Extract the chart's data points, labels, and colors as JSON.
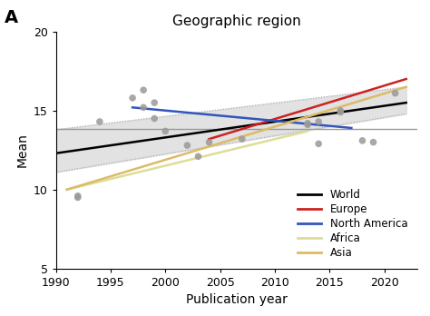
{
  "title": "Geographic region",
  "panel_label": "A",
  "xlabel": "Publication year",
  "ylabel": "Mean",
  "xlim": [
    1990,
    2023
  ],
  "ylim": [
    5,
    20
  ],
  "xticks": [
    1990,
    1995,
    2000,
    2005,
    2010,
    2015,
    2020
  ],
  "yticks": [
    5,
    10,
    15,
    20
  ],
  "scatter_points": [
    [
      1992,
      9.5
    ],
    [
      1992,
      9.6
    ],
    [
      1994,
      14.3
    ],
    [
      1997,
      15.8
    ],
    [
      1998,
      16.3
    ],
    [
      1998,
      15.2
    ],
    [
      1999,
      15.5
    ],
    [
      1999,
      14.5
    ],
    [
      2000,
      13.7
    ],
    [
      2002,
      12.8
    ],
    [
      2003,
      12.1
    ],
    [
      2004,
      13.0
    ],
    [
      2007,
      13.2
    ],
    [
      2013,
      14.1
    ],
    [
      2013,
      14.2
    ],
    [
      2014,
      14.3
    ],
    [
      2014,
      12.9
    ],
    [
      2016,
      15.0
    ],
    [
      2016,
      14.9
    ],
    [
      2018,
      13.1
    ],
    [
      2019,
      13.0
    ],
    [
      2021,
      16.1
    ]
  ],
  "scatter_color": "#999999",
  "scatter_size": 30,
  "world_line": {
    "x": [
      1990,
      2022
    ],
    "y": [
      12.3,
      15.5
    ],
    "color": "#000000",
    "lw": 1.8
  },
  "world_ci_upper": {
    "x": [
      1990,
      2022
    ],
    "y": [
      13.8,
      16.5
    ]
  },
  "world_ci_lower": {
    "x": [
      1990,
      2022
    ],
    "y": [
      11.1,
      14.8
    ]
  },
  "world_ci_color": "#d0d0d0",
  "europe_line": {
    "x": [
      2004,
      2022
    ],
    "y": [
      13.2,
      17.0
    ],
    "color": "#cc2222",
    "lw": 1.8
  },
  "north_america_line": {
    "x": [
      1997,
      2017
    ],
    "y": [
      15.2,
      13.9
    ],
    "color": "#3355bb",
    "lw": 1.8
  },
  "africa_line": {
    "x": [
      1991,
      2013
    ],
    "y": [
      10.0,
      13.7
    ],
    "color": "#dddd99",
    "lw": 1.8
  },
  "asia_line": {
    "x": [
      1991,
      2022
    ],
    "y": [
      10.0,
      16.5
    ],
    "color": "#ddbb66",
    "lw": 1.8
  },
  "hline_y": 13.85,
  "hline_color": "#999999",
  "hline_lw": 1.0,
  "legend_labels": [
    "World",
    "Europe",
    "North America",
    "Africa",
    "Asia"
  ],
  "legend_colors": [
    "#000000",
    "#cc2222",
    "#3355bb",
    "#dddd99",
    "#ddbb66"
  ],
  "bg_color": "#ffffff",
  "title_fontsize": 11,
  "label_fontsize": 10,
  "tick_fontsize": 9
}
